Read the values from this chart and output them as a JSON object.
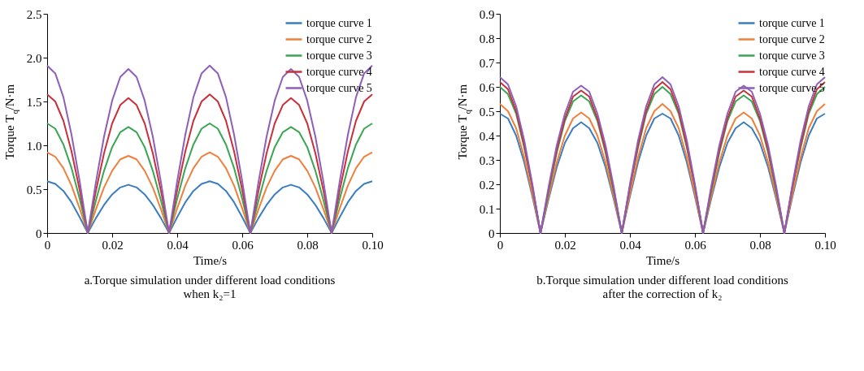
{
  "chart_data": [
    {
      "type": "line",
      "title": "a.Torque simulation under different load conditions when k₂=1",
      "xlabel": "Time/s",
      "ylabel": "Torque T$_{q}$/N·m",
      "legend": "top right",
      "grid": false,
      "marker": "none",
      "line_style": "solid",
      "x": [
        0,
        0.0025,
        0.005,
        0.0075,
        0.01,
        0.0125,
        0.015,
        0.0175,
        0.02,
        0.0225,
        0.025,
        0.0275,
        0.03,
        0.0325,
        0.035,
        0.0375,
        0.04,
        0.0425,
        0.045,
        0.0475,
        0.05,
        0.0525,
        0.055,
        0.0575,
        0.06,
        0.0625,
        0.065,
        0.0675,
        0.07,
        0.0725,
        0.075,
        0.0775,
        0.08,
        0.0825,
        0.085,
        0.0875,
        0.09,
        0.0925,
        0.095,
        0.0975,
        0.1
      ],
      "xlim": [
        0,
        0.1
      ],
      "xticks": [
        0,
        0.02,
        0.04,
        0.06,
        0.08,
        {
          "value": 0.1,
          "label": "0.10"
        }
      ],
      "ylim": [
        0,
        2.5
      ],
      "yticks": [
        0,
        0.5,
        {
          "value": 1,
          "label": "1.0"
        },
        1.5,
        {
          "value": 2,
          "label": "2.0"
        },
        2.5
      ],
      "series": [
        {
          "name": "torque curve 1",
          "color": "#3a7dc0",
          "values": [
            0.59,
            0.56,
            0.48,
            0.35,
            0.18,
            0,
            0.17,
            0.32,
            0.44,
            0.52,
            0.55,
            0.52,
            0.44,
            0.32,
            0.17,
            0,
            0.18,
            0.35,
            0.48,
            0.56,
            0.59,
            0.56,
            0.48,
            0.35,
            0.18,
            0,
            0.17,
            0.32,
            0.44,
            0.52,
            0.55,
            0.52,
            0.44,
            0.32,
            0.17,
            0,
            0.18,
            0.35,
            0.48,
            0.56,
            0.59
          ]
        },
        {
          "name": "torque curve 2",
          "color": "#f07f3c",
          "values": [
            0.92,
            0.87,
            0.74,
            0.54,
            0.28,
            0,
            0.27,
            0.52,
            0.71,
            0.84,
            0.88,
            0.84,
            0.71,
            0.52,
            0.27,
            0,
            0.28,
            0.54,
            0.74,
            0.87,
            0.92,
            0.87,
            0.74,
            0.54,
            0.28,
            0,
            0.27,
            0.52,
            0.71,
            0.84,
            0.88,
            0.84,
            0.71,
            0.52,
            0.27,
            0,
            0.28,
            0.54,
            0.74,
            0.87,
            0.92
          ]
        },
        {
          "name": "torque curve 3",
          "color": "#3aa655",
          "values": [
            1.25,
            1.19,
            1.01,
            0.74,
            0.39,
            0,
            0.37,
            0.71,
            0.98,
            1.15,
            1.21,
            1.15,
            0.98,
            0.71,
            0.37,
            0,
            0.39,
            0.74,
            1.01,
            1.19,
            1.25,
            1.19,
            1.01,
            0.74,
            0.39,
            0,
            0.37,
            0.71,
            0.98,
            1.15,
            1.21,
            1.15,
            0.98,
            0.71,
            0.37,
            0,
            0.39,
            0.74,
            1.01,
            1.19,
            1.25
          ]
        },
        {
          "name": "torque curve 4",
          "color": "#c8303a",
          "values": [
            1.58,
            1.5,
            1.28,
            0.93,
            0.49,
            0,
            0.48,
            0.91,
            1.25,
            1.46,
            1.54,
            1.46,
            1.25,
            0.91,
            0.48,
            0,
            0.49,
            0.93,
            1.28,
            1.5,
            1.58,
            1.5,
            1.28,
            0.93,
            0.49,
            0,
            0.48,
            0.91,
            1.25,
            1.46,
            1.54,
            1.46,
            1.25,
            0.91,
            0.48,
            0,
            0.49,
            0.93,
            1.28,
            1.5,
            1.58
          ]
        },
        {
          "name": "torque curve 5",
          "color": "#8e5fb8",
          "values": [
            1.91,
            1.82,
            1.55,
            1.12,
            0.59,
            0,
            0.58,
            1.1,
            1.51,
            1.78,
            1.87,
            1.78,
            1.51,
            1.1,
            0.58,
            0,
            0.59,
            1.12,
            1.55,
            1.82,
            1.91,
            1.82,
            1.55,
            1.12,
            0.59,
            0,
            0.58,
            1.1,
            1.51,
            1.78,
            1.87,
            1.78,
            1.51,
            1.1,
            0.58,
            0,
            0.59,
            1.12,
            1.55,
            1.82,
            1.91
          ]
        }
      ]
    },
    {
      "type": "line",
      "title": "b.Torque simulation under different load conditions after the correction of k₂",
      "xlabel": "Time/s",
      "ylabel": "Torque T$_{q}$/N·m",
      "legend": "top right",
      "grid": false,
      "marker": "none",
      "line_style": "solid",
      "x": [
        0,
        0.0025,
        0.005,
        0.0075,
        0.01,
        0.0125,
        0.015,
        0.0175,
        0.02,
        0.0225,
        0.025,
        0.0275,
        0.03,
        0.0325,
        0.035,
        0.0375,
        0.04,
        0.0425,
        0.045,
        0.0475,
        0.05,
        0.0525,
        0.055,
        0.0575,
        0.06,
        0.0625,
        0.065,
        0.0675,
        0.07,
        0.0725,
        0.075,
        0.0775,
        0.08,
        0.0825,
        0.085,
        0.0875,
        0.09,
        0.0925,
        0.095,
        0.0975,
        0.1
      ],
      "xlim": [
        0,
        0.1
      ],
      "xticks": [
        0,
        0.02,
        0.04,
        0.06,
        0.08,
        {
          "value": 0.1,
          "label": "0.10"
        }
      ],
      "ylim": [
        0,
        0.9
      ],
      "yticks": [
        0,
        0.1,
        0.2,
        0.3,
        0.4,
        0.5,
        0.6,
        0.7,
        0.8,
        0.9
      ],
      "series": [
        {
          "name": "torque curve 1",
          "color": "#3a7dc0",
          "values": [
            0.49,
            0.47,
            0.4,
            0.29,
            0.15,
            0,
            0.14,
            0.27,
            0.37,
            0.43,
            0.455,
            0.43,
            0.37,
            0.27,
            0.14,
            0,
            0.15,
            0.29,
            0.4,
            0.47,
            0.49,
            0.47,
            0.4,
            0.29,
            0.15,
            0,
            0.14,
            0.27,
            0.37,
            0.43,
            0.455,
            0.43,
            0.37,
            0.27,
            0.14,
            0,
            0.15,
            0.29,
            0.4,
            0.47,
            0.49
          ]
        },
        {
          "name": "torque curve 2",
          "color": "#f07f3c",
          "values": [
            0.53,
            0.5,
            0.43,
            0.31,
            0.16,
            0,
            0.15,
            0.29,
            0.4,
            0.47,
            0.495,
            0.47,
            0.4,
            0.29,
            0.15,
            0,
            0.16,
            0.31,
            0.43,
            0.5,
            0.53,
            0.5,
            0.43,
            0.31,
            0.16,
            0,
            0.15,
            0.29,
            0.4,
            0.47,
            0.495,
            0.47,
            0.4,
            0.29,
            0.15,
            0,
            0.16,
            0.31,
            0.43,
            0.5,
            0.53
          ]
        },
        {
          "name": "torque curve 3",
          "color": "#3aa655",
          "values": [
            0.6,
            0.57,
            0.49,
            0.35,
            0.19,
            0,
            0.17,
            0.33,
            0.46,
            0.54,
            0.565,
            0.54,
            0.46,
            0.33,
            0.17,
            0,
            0.19,
            0.35,
            0.49,
            0.57,
            0.6,
            0.57,
            0.49,
            0.35,
            0.19,
            0,
            0.17,
            0.33,
            0.46,
            0.54,
            0.565,
            0.54,
            0.46,
            0.33,
            0.17,
            0,
            0.19,
            0.35,
            0.49,
            0.57,
            0.6
          ]
        },
        {
          "name": "torque curve 4",
          "color": "#c8303a",
          "values": [
            0.62,
            0.59,
            0.5,
            0.36,
            0.19,
            0,
            0.18,
            0.34,
            0.47,
            0.56,
            0.585,
            0.56,
            0.47,
            0.34,
            0.18,
            0,
            0.19,
            0.36,
            0.5,
            0.59,
            0.62,
            0.59,
            0.5,
            0.36,
            0.19,
            0,
            0.18,
            0.34,
            0.47,
            0.56,
            0.585,
            0.56,
            0.47,
            0.34,
            0.18,
            0,
            0.19,
            0.36,
            0.5,
            0.59,
            0.62
          ]
        },
        {
          "name": "torque curve 5",
          "color": "#8e5fb8",
          "values": [
            0.64,
            0.61,
            0.52,
            0.38,
            0.2,
            0,
            0.19,
            0.36,
            0.49,
            0.58,
            0.605,
            0.58,
            0.49,
            0.36,
            0.19,
            0,
            0.2,
            0.38,
            0.52,
            0.61,
            0.64,
            0.61,
            0.52,
            0.38,
            0.2,
            0,
            0.19,
            0.36,
            0.49,
            0.58,
            0.605,
            0.58,
            0.49,
            0.36,
            0.19,
            0,
            0.2,
            0.38,
            0.52,
            0.61,
            0.64
          ]
        }
      ]
    }
  ]
}
